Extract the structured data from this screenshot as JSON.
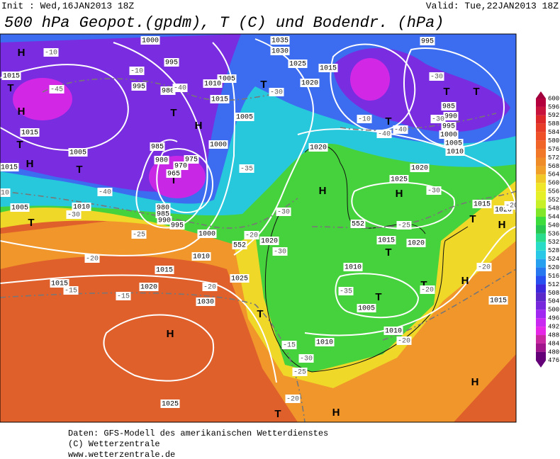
{
  "header": {
    "init": "Init : Wed,16JAN2013 18Z",
    "valid": "Valid: Tue,22JAN2013 18Z",
    "title": "500 hPa Geopot.(gpdm), T (C) und Bodendr. (hPa)"
  },
  "map": {
    "pressure_centers": [
      "H",
      "T",
      "H",
      "T",
      "H",
      "T",
      "T",
      "H",
      "T",
      "T",
      "T",
      "T",
      "T",
      "H",
      "H",
      "T",
      "T",
      "T",
      "H",
      "T",
      "H",
      "H",
      "T",
      "H",
      "T",
      "T",
      "H"
    ],
    "isobar_labels": [
      "1015",
      "1015",
      "1005",
      "1015",
      "1005",
      "1010",
      "1000",
      "995",
      "995",
      "980",
      "985",
      "980",
      "975",
      "965",
      "970",
      "1000",
      "1005",
      "1010",
      "1015",
      "1005",
      "1035",
      "1030",
      "1025",
      "1015",
      "1020",
      "1020",
      "1025",
      "1020",
      "995",
      "985",
      "990",
      "995",
      "1000",
      "1005",
      "1010",
      "1015",
      "1020",
      "1020",
      "1015",
      "1020",
      "1010",
      "1005",
      "1010",
      "1010",
      "1015",
      "1020",
      "1015",
      "1025",
      "1030",
      "1025",
      "1015",
      "1000",
      "1010",
      "980",
      "985",
      "990",
      "995",
      "552",
      "552"
    ],
    "temperature_labels": [
      "-10",
      "-10",
      "-45",
      "-40",
      "-40",
      "-30",
      "-10",
      "-30",
      "-35",
      "-30",
      "-25",
      "-20",
      "-15",
      "-15",
      "-20",
      "-25",
      "-30",
      "-10",
      "-40",
      "-40",
      "-30",
      "-30",
      "-35",
      "-30",
      "-20",
      "-15",
      "-30",
      "-25",
      "-20",
      "-20",
      "-20",
      "-20",
      "-20"
    ]
  },
  "colorbar": {
    "labels": [
      600,
      596,
      592,
      588,
      584,
      580,
      576,
      572,
      568,
      564,
      560,
      556,
      552,
      548,
      544,
      540,
      536,
      532,
      528,
      524,
      520,
      516,
      512,
      508,
      504,
      500,
      496,
      492,
      488,
      484,
      480,
      476
    ],
    "colors": [
      "#a0003c",
      "#b4003c",
      "#c8143c",
      "#dc2828",
      "#e63c28",
      "#f05028",
      "#f06428",
      "#f07828",
      "#f08c28",
      "#f0a028",
      "#f0c828",
      "#f0e628",
      "#e6f028",
      "#c8f028",
      "#82e628",
      "#3cdc3c",
      "#28c850",
      "#28dc8c",
      "#28dcc8",
      "#28c8e6",
      "#28a0f0",
      "#2878f0",
      "#2850f0",
      "#3c28dc",
      "#5a28c8",
      "#7828dc",
      "#a028f0",
      "#c828f0",
      "#e628e6",
      "#c828a0",
      "#a0148c",
      "#640078"
    ]
  },
  "footer": [
    "Daten: GFS-Modell des amerikanischen Wetterdienstes",
    "(C) Wetterzentrale",
    "www.wetterzentrale.de"
  ]
}
